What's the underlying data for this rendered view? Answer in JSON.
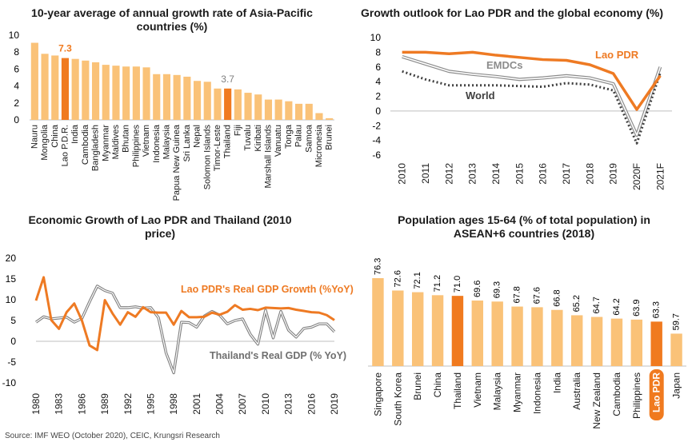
{
  "source": "Source: IMF WEO (October 2020), CEIC, Krungsri Research",
  "colors": {
    "bar": "#FAC278",
    "highlight": "#F07A1F",
    "orange": "#EE7A23",
    "grey": "#8C8C8C",
    "dark": "#3F3F3F",
    "ltgrey": "#BDBDBD"
  },
  "chart_data": [
    {
      "type": "bar",
      "title": "10-year average of annual growth rate of Asia-Pacific countries (%)",
      "categories": [
        "Nauru",
        "Mongolia",
        "China",
        "Lao P.D.R.",
        "India",
        "Cambodia",
        "Bangladesh",
        "Myanmar",
        "Maldives",
        "Bhutan",
        "Philippines",
        "Vietnam",
        "Indonesia",
        "Malaysia",
        "Papua New Guinea",
        "Sri Lanka",
        "Nepal",
        "Solomon Islands",
        "Timor-Leste",
        "Thailand",
        "Fiji",
        "Tuvalu",
        "Kiribati",
        "Marshall Islands",
        "Vanuatu",
        "Tonga",
        "Palau",
        "Samoa",
        "Micronesia",
        "Brunei"
      ],
      "values": [
        9.1,
        7.8,
        7.6,
        7.3,
        7.2,
        7.0,
        6.8,
        6.5,
        6.4,
        6.3,
        6.3,
        6.2,
        5.4,
        5.4,
        5.3,
        5.1,
        4.6,
        4.5,
        3.7,
        3.7,
        3.6,
        3.2,
        3.0,
        2.4,
        2.4,
        2.2,
        1.9,
        1.9,
        0.8,
        0.2
      ],
      "highlight": [
        "Lao P.D.R.",
        "Thailand"
      ],
      "data_labels": {
        "Lao P.D.R.": "7.3",
        "Thailand": "3.7"
      },
      "yticks": [
        "0",
        "2",
        "4",
        "6",
        "8",
        "10"
      ],
      "ylim": [
        0,
        10
      ]
    },
    {
      "type": "line",
      "title": "Growth outlook for Lao PDR and the global economy (%)",
      "x": [
        "2010",
        "2011",
        "2012",
        "2013",
        "2014",
        "2015",
        "2016",
        "2017",
        "2018",
        "2019",
        "2020F",
        "2021F"
      ],
      "yticks": [
        "-6",
        "-4",
        "-2",
        "0",
        "2",
        "4",
        "6",
        "8",
        "10"
      ],
      "ylim": [
        -6,
        10
      ],
      "series": [
        {
          "name": "Lao PDR",
          "values": [
            8.0,
            8.0,
            7.8,
            8.0,
            7.6,
            7.3,
            7.0,
            6.9,
            6.3,
            5.1,
            0.2,
            4.8
          ]
        },
        {
          "name": "EMDCs",
          "values": [
            7.4,
            6.4,
            5.4,
            5.0,
            4.7,
            4.3,
            4.5,
            4.8,
            4.5,
            3.7,
            -3.3,
            6.0
          ]
        },
        {
          "name": "World",
          "values": [
            5.4,
            4.3,
            3.5,
            3.5,
            3.5,
            3.4,
            3.3,
            3.8,
            3.6,
            2.8,
            -4.4,
            5.2
          ]
        }
      ]
    },
    {
      "type": "line",
      "title": "Economic Growth of Lao PDR and Thailand (2010 price)",
      "x": [
        "1980",
        "1981",
        "1982",
        "1983",
        "1984",
        "1985",
        "1986",
        "1987",
        "1988",
        "1989",
        "1990",
        "1991",
        "1992",
        "1993",
        "1994",
        "1995",
        "1996",
        "1997",
        "1998",
        "1999",
        "2000",
        "2001",
        "2002",
        "2003",
        "2004",
        "2005",
        "2006",
        "2007",
        "2008",
        "2009",
        "2010",
        "2011",
        "2012",
        "2013",
        "2014",
        "2015",
        "2016",
        "2017",
        "2018",
        "2019"
      ],
      "xticks": [
        "1980",
        "1983",
        "1986",
        "1989",
        "1992",
        "1995",
        "1998",
        "2001",
        "2004",
        "2007",
        "2010",
        "2013",
        "2016",
        "2019"
      ],
      "yticks": [
        "-10",
        "-5",
        "0",
        "5",
        "10",
        "15",
        "20"
      ],
      "ylim": [
        -10,
        20
      ],
      "series": [
        {
          "name": "Lao PDR's Real GDP Growth (%YoY)",
          "values": [
            9.8,
            15.4,
            5.1,
            3.0,
            7.0,
            9.1,
            5.0,
            -1.0,
            -2.1,
            9.9,
            6.7,
            4.0,
            7.0,
            5.9,
            8.2,
            7.0,
            6.9,
            6.9,
            4.0,
            7.3,
            5.8,
            5.8,
            5.9,
            6.9,
            6.4,
            7.1,
            8.7,
            7.6,
            7.8,
            7.5,
            8.1,
            8.0,
            7.9,
            8.0,
            7.6,
            7.3,
            7.0,
            6.9,
            6.3,
            5.1
          ]
        },
        {
          "name": "Thailand's Real GDP (% YoY)",
          "values": [
            4.6,
            5.9,
            5.4,
            5.6,
            5.8,
            4.6,
            5.5,
            9.5,
            13.3,
            12.2,
            11.6,
            8.1,
            8.1,
            8.3,
            8.0,
            8.1,
            5.7,
            -2.8,
            -7.6,
            4.6,
            4.5,
            3.4,
            6.1,
            7.2,
            6.3,
            4.2,
            5.0,
            5.4,
            1.7,
            -0.7,
            7.5,
            0.8,
            7.2,
            2.7,
            1.0,
            3.1,
            3.4,
            4.2,
            4.2,
            2.3
          ]
        }
      ]
    },
    {
      "type": "bar",
      "title": "Population ages 15-64 (% of total population) in ASEAN+6 countries (2018)",
      "categories": [
        "Singapore",
        "South Korea",
        "Brunei",
        "China",
        "Thailand",
        "Vietnam",
        "Malaysia",
        "Myanmar",
        "Indonesia",
        "India",
        "Australia",
        "New Zealand",
        "Cambodia",
        "Philippines",
        "Lao PDR",
        "Japan"
      ],
      "values": [
        76.3,
        72.6,
        72.1,
        71.2,
        71.0,
        69.6,
        69.3,
        67.8,
        67.6,
        66.8,
        65.2,
        64.7,
        64.2,
        63.9,
        63.3,
        59.7
      ],
      "data_labels": [
        "76.3",
        "72.6",
        "72.1",
        "71.2",
        "71.0",
        "69.6",
        "69.3",
        "67.8",
        "67.6",
        "66.8",
        "65.2",
        "64.7",
        "64.2",
        "63.9",
        "63.3",
        "59.7"
      ],
      "highlight": [
        "Thailand",
        "Lao PDR"
      ]
    }
  ]
}
